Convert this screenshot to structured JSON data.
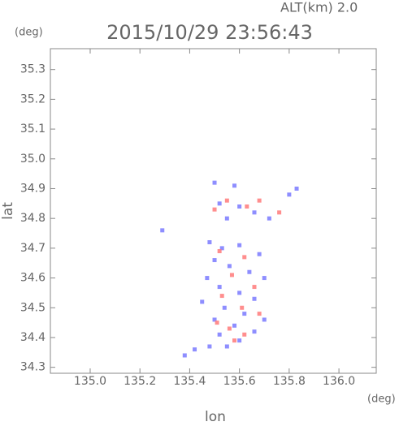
{
  "chart_data": {
    "type": "scatter",
    "title": "2015/10/29 23:56:43",
    "subtitle": "ALT(km) 2.0",
    "y_unit": "(deg)",
    "x_unit": "(deg)",
    "xlabel": "lon",
    "ylabel": "lat",
    "xlim": [
      134.84,
      136.15
    ],
    "ylim": [
      34.28,
      35.37
    ],
    "xticks": [
      {
        "value": 135,
        "label": "135.0"
      },
      135.2,
      135.4,
      135.6,
      135.8,
      {
        "value": 136,
        "label": "136.0"
      }
    ],
    "yticks": [
      34.3,
      34.4,
      34.5,
      34.6,
      34.7,
      34.8,
      34.9,
      {
        "value": 35,
        "label": "35.0"
      },
      35.1,
      35.2,
      35.3
    ],
    "series": [
      {
        "color": "#7a7aff",
        "x": [
          135.5,
          135.58,
          135.52,
          135.6,
          135.66,
          135.55,
          135.72,
          135.8,
          135.83,
          135.29,
          135.48,
          135.53,
          135.6,
          135.68,
          135.5,
          135.56,
          135.64,
          135.7,
          135.47,
          135.52,
          135.6,
          135.66,
          135.54,
          135.62,
          135.5,
          135.58,
          135.66,
          135.52,
          135.6,
          135.48,
          135.42,
          135.38,
          135.55,
          135.7,
          135.45
        ],
        "y": [
          34.92,
          34.91,
          34.85,
          34.84,
          34.82,
          34.8,
          34.8,
          34.88,
          34.9,
          34.76,
          34.72,
          34.7,
          34.71,
          34.68,
          34.66,
          34.64,
          34.62,
          34.6,
          34.6,
          34.57,
          34.55,
          34.53,
          34.5,
          34.48,
          34.46,
          34.44,
          34.42,
          34.41,
          34.39,
          34.37,
          34.36,
          34.34,
          34.37,
          34.46,
          34.52
        ]
      },
      {
        "color": "#ff7a7a",
        "x": [
          135.55,
          135.68,
          135.63,
          135.5,
          135.76,
          135.52,
          135.62,
          135.57,
          135.66,
          135.53,
          135.61,
          135.68,
          135.56,
          135.62,
          135.58,
          135.51
        ],
        "y": [
          34.86,
          34.86,
          34.84,
          34.83,
          34.82,
          34.69,
          34.67,
          34.61,
          34.57,
          34.54,
          34.5,
          34.48,
          34.43,
          34.41,
          34.39,
          34.45
        ]
      }
    ]
  }
}
